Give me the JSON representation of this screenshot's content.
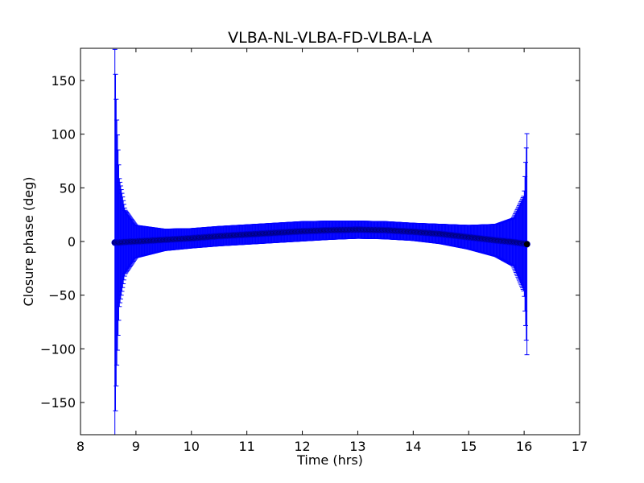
{
  "chart_data": {
    "type": "scatter",
    "title": "VLBA-NL-VLBA-FD-VLBA-LA",
    "xlabel": "Time (hrs)",
    "ylabel": "Closure phase (deg)",
    "xlim": [
      8,
      17
    ],
    "ylim": [
      -180,
      180
    ],
    "xticks": [
      8,
      9,
      10,
      11,
      12,
      13,
      14,
      15,
      16,
      17
    ],
    "xtick_labels": [
      "8",
      "9",
      "10",
      "11",
      "12",
      "13",
      "14",
      "15",
      "16",
      "17"
    ],
    "yticks": [
      -150,
      -100,
      -50,
      0,
      50,
      100,
      150
    ],
    "ytick_labels": [
      "−150",
      "−100",
      "−50",
      "0",
      "50",
      "100",
      "150"
    ],
    "grid": false,
    "legend": "none",
    "series": [
      {
        "x": [
          8.62,
          8.65,
          8.7,
          8.8,
          9.0,
          9.5,
          10.0,
          10.5,
          11.0,
          11.5,
          12.0,
          12.5,
          13.0,
          13.5,
          14.0,
          14.5,
          15.0,
          15.5,
          15.8,
          16.0,
          16.05
        ],
        "y": [
          -1,
          -1,
          -1,
          -0.5,
          0,
          1.5,
          3,
          5,
          6.5,
          8,
          9.5,
          10.5,
          11,
          10.5,
          9,
          7,
          4,
          1,
          -0.5,
          -2,
          -2.5
        ],
        "yerr": [
          180,
          120,
          60,
          30,
          15,
          10,
          9,
          9,
          9,
          9,
          9,
          8.5,
          8,
          8,
          8,
          9,
          11,
          15,
          22,
          45,
          103
        ]
      }
    ],
    "colors": {
      "marker": "#000000",
      "errorbar": "#0000ff"
    }
  }
}
